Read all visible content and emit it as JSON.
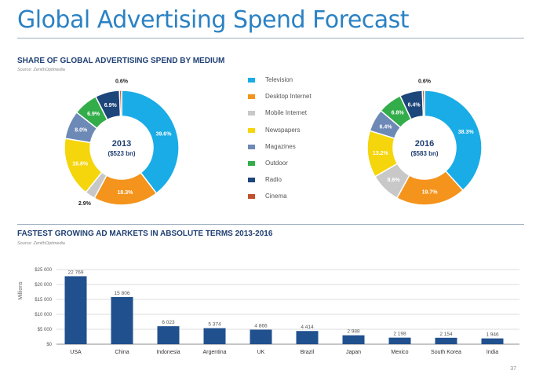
{
  "page": {
    "title": "Global Advertising Spend Forecast",
    "page_number": "37"
  },
  "colors": {
    "title": "#2b82c4",
    "Television": "#1aace6",
    "Desktop Internet": "#f4941c",
    "Mobile Internet": "#c8c8c8",
    "Newspapers": "#f5d50c",
    "Magazines": "#6d89b6",
    "Outdoor": "#33ad4a",
    "Radio": "#1d467b",
    "Cinema": "#c0512c",
    "bar": "#21508e"
  },
  "section1": {
    "heading": "SHARE OF GLOBAL ADVERTISING SPEND BY MEDIUM",
    "source": "Source: ZenithOptimedia"
  },
  "section2": {
    "heading": "FASTEST GROWING AD MARKETS IN ABSOLUTE TERMS 2013-2016",
    "source": "Source: ZenithOptimedia"
  },
  "legend": [
    "Television",
    "Desktop Internet",
    "Mobile Internet",
    "Newspapers",
    "Magazines",
    "Outdoor",
    "Radio",
    "Cinema"
  ],
  "chart_data": [
    {
      "type": "pie",
      "title": "2013",
      "subtitle": "($523 bn)",
      "categories": [
        "Television",
        "Desktop Internet",
        "Mobile Internet",
        "Newspapers",
        "Magazines",
        "Outdoor",
        "Radio",
        "Cinema"
      ],
      "values": [
        39.6,
        18.3,
        2.9,
        16.8,
        8.0,
        6.9,
        6.9,
        0.6
      ],
      "labels": [
        "39.6%",
        "18.3%",
        "2.9%",
        "16.8%",
        "8.0%",
        "6.9%",
        "6.9%",
        "0.6%"
      ]
    },
    {
      "type": "pie",
      "title": "2016",
      "subtitle": "($583 bn)",
      "categories": [
        "Television",
        "Desktop Internet",
        "Mobile Internet",
        "Newspapers",
        "Magazines",
        "Outdoor",
        "Radio",
        "Cinema"
      ],
      "values": [
        38.3,
        19.7,
        8.6,
        13.2,
        6.4,
        6.8,
        6.4,
        0.6
      ],
      "labels": [
        "38.3%",
        "19.7%",
        "8.6%",
        "13.2%",
        "6.4%",
        "6.8%",
        "6.4%",
        "0.6%"
      ]
    },
    {
      "type": "bar",
      "categories": [
        "USA",
        "China",
        "Indonesia",
        "Argentina",
        "UK",
        "Brazil",
        "Japan",
        "Mexico",
        "South Korea",
        "India"
      ],
      "values": [
        22769,
        15806,
        6023,
        5374,
        4866,
        4414,
        2988,
        2198,
        2154,
        1946
      ],
      "value_labels": [
        "22 769",
        "15 806",
        "6 023",
        "5 374",
        "4 866",
        "4 414",
        "2 988",
        "2 198",
        "2 154",
        "1 946"
      ],
      "ylabel": "Millions",
      "yticks": [
        0,
        5000,
        10000,
        15000,
        20000,
        25000
      ],
      "ytick_labels": [
        "$0",
        "$5 000",
        "$10 000",
        "$15 000",
        "$20 000",
        "$25 000"
      ],
      "ylim": [
        0,
        25000
      ],
      "grid": true
    }
  ]
}
